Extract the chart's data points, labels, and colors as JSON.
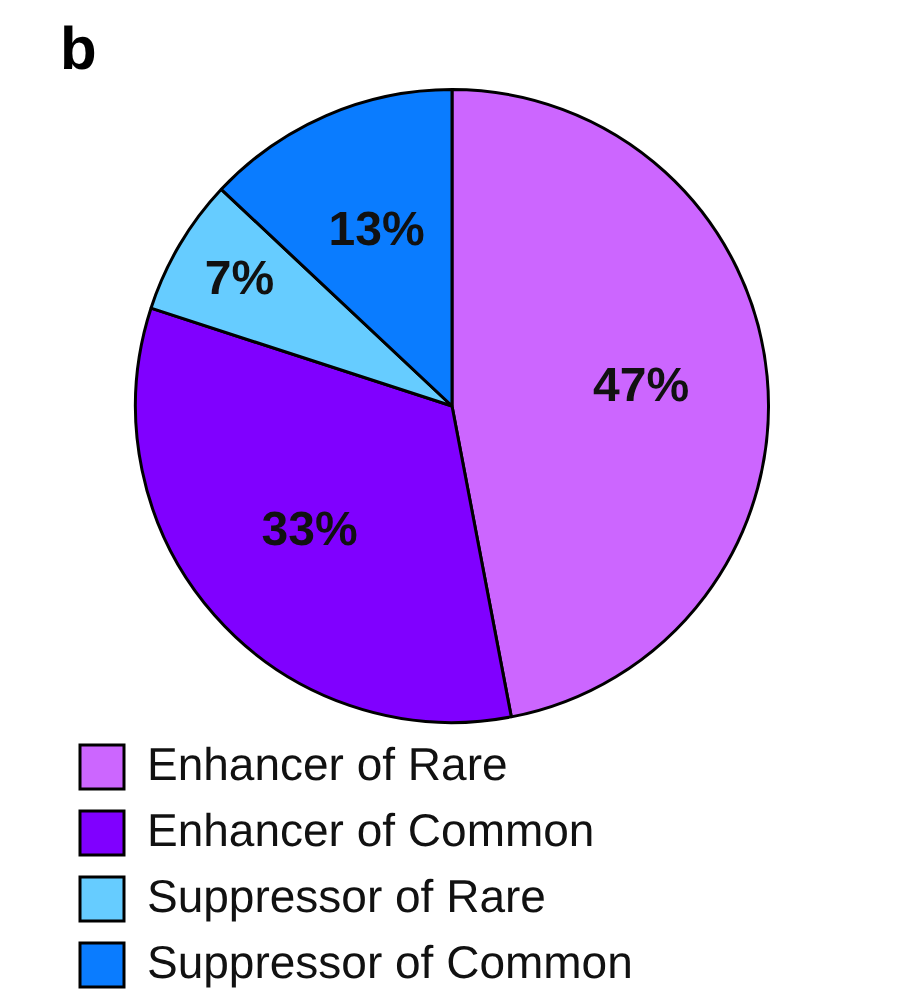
{
  "chart_data": {
    "type": "pie",
    "title": "b",
    "categories": [
      "Enhancer of Rare",
      "Enhancer of Common",
      "Suppressor of Rare",
      "Suppressor of Common"
    ],
    "values": [
      47,
      33,
      7,
      13
    ],
    "colors": [
      "#cc66ff",
      "#8000ff",
      "#66ccff",
      "#0a7cff"
    ],
    "value_labels": [
      "47%",
      "33%",
      "7%",
      "13%"
    ],
    "legend": "bottom"
  }
}
